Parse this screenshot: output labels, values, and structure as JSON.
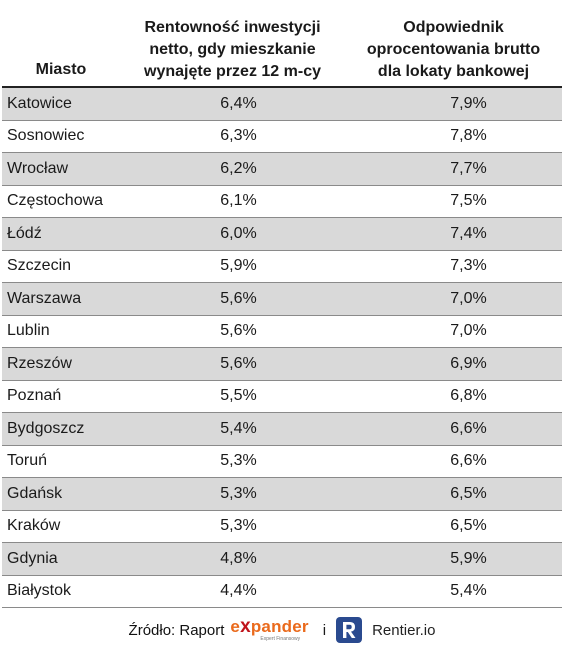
{
  "table": {
    "headers": {
      "city": "Miasto",
      "return": [
        "Rentowność inwestycji",
        "netto, gdy mieszkanie",
        "wynajęte przez 12 m-cy"
      ],
      "deposit": [
        "Odpowiednik",
        "oprocentowania brutto",
        "dla lokaty bankowej"
      ]
    },
    "rows": [
      {
        "city": "Katowice",
        "return": "6,4%",
        "deposit": "7,9%"
      },
      {
        "city": "Sosnowiec",
        "return": "6,3%",
        "deposit": "7,8%"
      },
      {
        "city": "Wrocław",
        "return": "6,2%",
        "deposit": "7,7%"
      },
      {
        "city": "Częstochowa",
        "return": "6,1%",
        "deposit": "7,5%"
      },
      {
        "city": "Łódź",
        "return": "6,0%",
        "deposit": "7,4%"
      },
      {
        "city": "Szczecin",
        "return": "5,9%",
        "deposit": "7,3%"
      },
      {
        "city": "Warszawa",
        "return": "5,6%",
        "deposit": "7,0%"
      },
      {
        "city": "Lublin",
        "return": "5,6%",
        "deposit": "7,0%"
      },
      {
        "city": "Rzeszów",
        "return": "5,6%",
        "deposit": "6,9%"
      },
      {
        "city": "Poznań",
        "return": "5,5%",
        "deposit": "6,8%"
      },
      {
        "city": "Bydgoszcz",
        "return": "5,4%",
        "deposit": "6,6%"
      },
      {
        "city": "Toruń",
        "return": "5,3%",
        "deposit": "6,6%"
      },
      {
        "city": "Gdańsk",
        "return": "5,3%",
        "deposit": "6,5%"
      },
      {
        "city": "Kraków",
        "return": "5,3%",
        "deposit": "6,5%"
      },
      {
        "city": "Gdynia",
        "return": "4,8%",
        "deposit": "5,9%"
      },
      {
        "city": "Białystok",
        "return": "4,4%",
        "deposit": "5,4%"
      }
    ],
    "shaded_color": "#d9d9d9"
  },
  "footer": {
    "source_label": "Źródło: Raport",
    "expander_prefix": "e",
    "expander_x": "x",
    "expander_rest": "pander",
    "expander_tagline": "Expert Finansowy",
    "conjunction": "i",
    "rentier_badge_letter": "R",
    "rentier_name": "Rentier.io",
    "expander_color": "#ea6a1c",
    "expander_x_color": "#c0141b",
    "rentier_color": "#2a4a8f"
  }
}
